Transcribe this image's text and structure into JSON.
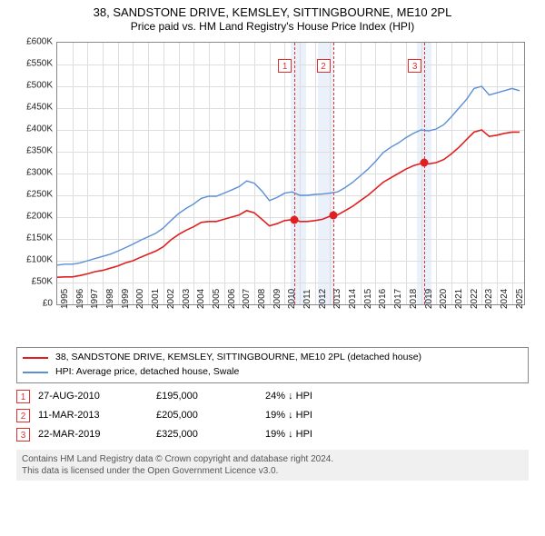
{
  "title_line1": "38, SANDSTONE DRIVE, KEMSLEY, SITTINGBOURNE, ME10 2PL",
  "title_line2": "Price paid vs. HM Land Registry's House Price Index (HPI)",
  "chart": {
    "type": "line",
    "xlim": [
      1995,
      2025.8
    ],
    "ylim": [
      0,
      600000
    ],
    "ytick_step": 50000,
    "y_prefix": "£",
    "y_suffix": "K",
    "x_years": [
      1995,
      1996,
      1997,
      1998,
      1999,
      2000,
      2001,
      2002,
      2003,
      2004,
      2005,
      2006,
      2007,
      2008,
      2009,
      2010,
      2011,
      2012,
      2013,
      2014,
      2015,
      2016,
      2017,
      2018,
      2019,
      2020,
      2021,
      2022,
      2023,
      2024,
      2025
    ],
    "grid_color": "#dddddd",
    "border_color": "#888888",
    "background_color": "#ffffff",
    "shade_color": "#eaf1fb",
    "shade_ranges": [
      [
        2010.4,
        2011.4
      ],
      [
        2012.2,
        2013.2
      ],
      [
        2018.7,
        2019.7
      ]
    ],
    "marker_line_color": "#e03030",
    "markers": [
      {
        "x": 2010.65,
        "top": 18,
        "label": "1"
      },
      {
        "x": 2013.19,
        "top": 18,
        "label": "2"
      },
      {
        "x": 2019.22,
        "top": 18,
        "label": "3"
      }
    ],
    "series": [
      {
        "name": "subject",
        "color": "#e02020",
        "width": 1.6,
        "points": [
          [
            1995.0,
            62000
          ],
          [
            1995.5,
            63000
          ],
          [
            1996.0,
            63000
          ],
          [
            1996.5,
            66000
          ],
          [
            1997.0,
            70000
          ],
          [
            1997.5,
            75000
          ],
          [
            1998.0,
            78000
          ],
          [
            1998.5,
            83000
          ],
          [
            1999.0,
            88000
          ],
          [
            1999.5,
            95000
          ],
          [
            2000.0,
            100000
          ],
          [
            2000.5,
            108000
          ],
          [
            2001.0,
            115000
          ],
          [
            2001.5,
            122000
          ],
          [
            2002.0,
            132000
          ],
          [
            2002.5,
            148000
          ],
          [
            2003.0,
            160000
          ],
          [
            2003.5,
            170000
          ],
          [
            2004.0,
            178000
          ],
          [
            2004.5,
            188000
          ],
          [
            2005.0,
            190000
          ],
          [
            2005.5,
            190000
          ],
          [
            2006.0,
            195000
          ],
          [
            2006.5,
            200000
          ],
          [
            2007.0,
            205000
          ],
          [
            2007.5,
            215000
          ],
          [
            2008.0,
            210000
          ],
          [
            2008.5,
            195000
          ],
          [
            2009.0,
            180000
          ],
          [
            2009.5,
            185000
          ],
          [
            2010.0,
            192000
          ],
          [
            2010.65,
            195000
          ],
          [
            2011.0,
            190000
          ],
          [
            2011.5,
            190000
          ],
          [
            2012.0,
            192000
          ],
          [
            2012.5,
            195000
          ],
          [
            2013.19,
            205000
          ],
          [
            2013.5,
            205000
          ],
          [
            2014.0,
            215000
          ],
          [
            2014.5,
            225000
          ],
          [
            2015.0,
            238000
          ],
          [
            2015.5,
            250000
          ],
          [
            2016.0,
            265000
          ],
          [
            2016.5,
            280000
          ],
          [
            2017.0,
            290000
          ],
          [
            2017.5,
            300000
          ],
          [
            2018.0,
            310000
          ],
          [
            2018.5,
            318000
          ],
          [
            2019.22,
            325000
          ],
          [
            2019.5,
            322000
          ],
          [
            2020.0,
            325000
          ],
          [
            2020.5,
            332000
          ],
          [
            2021.0,
            345000
          ],
          [
            2021.5,
            360000
          ],
          [
            2022.0,
            378000
          ],
          [
            2022.5,
            395000
          ],
          [
            2023.0,
            400000
          ],
          [
            2023.5,
            385000
          ],
          [
            2024.0,
            388000
          ],
          [
            2024.5,
            392000
          ],
          [
            2025.0,
            395000
          ],
          [
            2025.5,
            395000
          ]
        ],
        "sale_dots": [
          [
            2010.65,
            195000
          ],
          [
            2013.19,
            205000
          ],
          [
            2019.22,
            325000
          ]
        ]
      },
      {
        "name": "hpi",
        "color": "#5b8fd6",
        "width": 1.4,
        "points": [
          [
            1995.0,
            90000
          ],
          [
            1995.5,
            92000
          ],
          [
            1996.0,
            92000
          ],
          [
            1996.5,
            95000
          ],
          [
            1997.0,
            100000
          ],
          [
            1997.5,
            105000
          ],
          [
            1998.0,
            110000
          ],
          [
            1998.5,
            115000
          ],
          [
            1999.0,
            122000
          ],
          [
            1999.5,
            130000
          ],
          [
            2000.0,
            138000
          ],
          [
            2000.5,
            147000
          ],
          [
            2001.0,
            155000
          ],
          [
            2001.5,
            163000
          ],
          [
            2002.0,
            175000
          ],
          [
            2002.5,
            192000
          ],
          [
            2003.0,
            208000
          ],
          [
            2003.5,
            220000
          ],
          [
            2004.0,
            230000
          ],
          [
            2004.5,
            243000
          ],
          [
            2005.0,
            248000
          ],
          [
            2005.5,
            248000
          ],
          [
            2006.0,
            255000
          ],
          [
            2006.5,
            262000
          ],
          [
            2007.0,
            270000
          ],
          [
            2007.5,
            283000
          ],
          [
            2008.0,
            278000
          ],
          [
            2008.5,
            260000
          ],
          [
            2009.0,
            238000
          ],
          [
            2009.5,
            245000
          ],
          [
            2010.0,
            255000
          ],
          [
            2010.5,
            258000
          ],
          [
            2011.0,
            250000
          ],
          [
            2011.5,
            250000
          ],
          [
            2012.0,
            252000
          ],
          [
            2012.5,
            253000
          ],
          [
            2013.0,
            255000
          ],
          [
            2013.5,
            258000
          ],
          [
            2014.0,
            268000
          ],
          [
            2014.5,
            280000
          ],
          [
            2015.0,
            295000
          ],
          [
            2015.5,
            310000
          ],
          [
            2016.0,
            328000
          ],
          [
            2016.5,
            348000
          ],
          [
            2017.0,
            360000
          ],
          [
            2017.5,
            370000
          ],
          [
            2018.0,
            382000
          ],
          [
            2018.5,
            392000
          ],
          [
            2019.0,
            400000
          ],
          [
            2019.5,
            398000
          ],
          [
            2020.0,
            402000
          ],
          [
            2020.5,
            412000
          ],
          [
            2021.0,
            430000
          ],
          [
            2021.5,
            450000
          ],
          [
            2022.0,
            470000
          ],
          [
            2022.5,
            495000
          ],
          [
            2023.0,
            500000
          ],
          [
            2023.5,
            480000
          ],
          [
            2024.0,
            485000
          ],
          [
            2024.5,
            490000
          ],
          [
            2025.0,
            495000
          ],
          [
            2025.5,
            490000
          ]
        ]
      }
    ]
  },
  "legend": {
    "items": [
      {
        "color": "#e02020",
        "label": "38, SANDSTONE DRIVE, KEMSLEY, SITTINGBOURNE, ME10 2PL (detached house)"
      },
      {
        "color": "#5b8fd6",
        "label": "HPI: Average price, detached house, Swale"
      }
    ]
  },
  "sales": [
    {
      "n": "1",
      "date": "27-AUG-2010",
      "price": "£195,000",
      "delta": "24% ↓ HPI"
    },
    {
      "n": "2",
      "date": "11-MAR-2013",
      "price": "£205,000",
      "delta": "19% ↓ HPI"
    },
    {
      "n": "3",
      "date": "22-MAR-2019",
      "price": "£325,000",
      "delta": "19% ↓ HPI"
    }
  ],
  "footer_line1": "Contains HM Land Registry data © Crown copyright and database right 2024.",
  "footer_line2": "This data is licensed under the Open Government Licence v3.0."
}
